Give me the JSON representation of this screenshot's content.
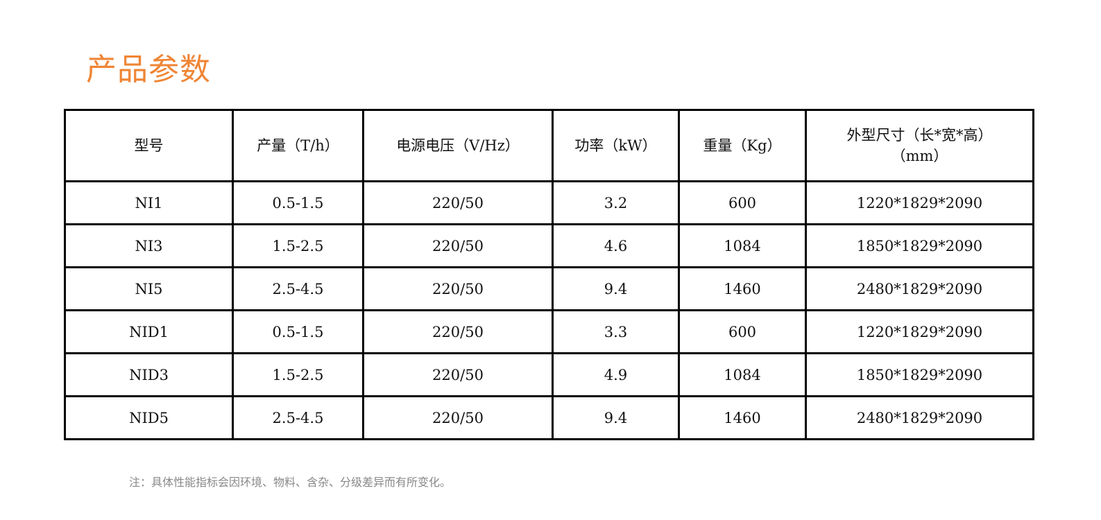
{
  "title": "产品参数",
  "headers": [
    "型号",
    "产量（T/h）",
    "电源电压（V/Hz）",
    "功率（kW）",
    "重量（Kg）",
    "外型尺寸（长*宽*高）（mm）"
  ],
  "rows": [
    [
      "NI1",
      "0.5-1.5",
      "220/50",
      "3.2",
      "600",
      "1220*1829*2090"
    ],
    [
      "NI3",
      "1.5-2.5",
      "220/50",
      "4.6",
      "1084",
      "1850*1829*2090"
    ],
    [
      "NI5",
      "2.5-4.5",
      "220/50",
      "9.4",
      "1460",
      "2480*1829*2090"
    ],
    [
      "NID1",
      "0.5-1.5",
      "220/50",
      "3.3",
      "600",
      "1220*1829*2090"
    ],
    [
      "NID3",
      "1.5-2.5",
      "220/50",
      "4.9",
      "1084",
      "1850*1829*2090"
    ],
    [
      "NID5",
      "2.5-4.5",
      "220/50",
      "9.4",
      "1460",
      "2480*1829*2090"
    ]
  ],
  "note": "注：具体性能指标会因环境、物料、含杂、分级差异而有所变化。",
  "colors": {
    "title": "#ef8535",
    "note": "#888888"
  }
}
